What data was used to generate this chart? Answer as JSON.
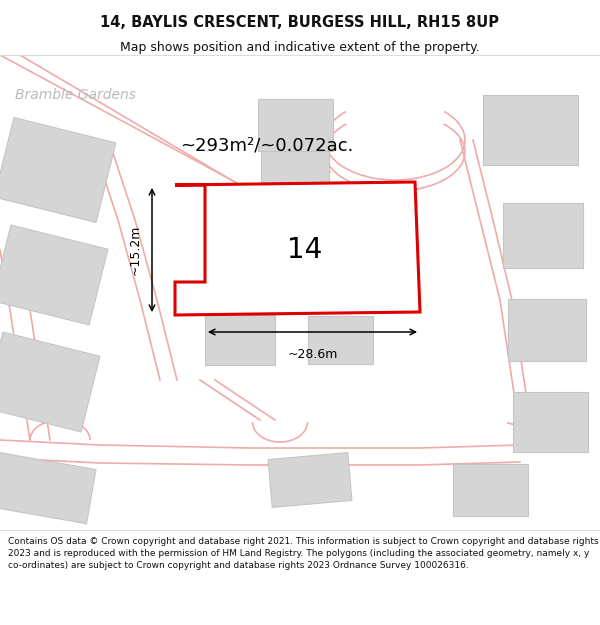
{
  "title_line1": "14, BAYLIS CRESCENT, BURGESS HILL, RH15 8UP",
  "title_line2": "Map shows position and indicative extent of the property.",
  "footer_text": "Contains OS data © Crown copyright and database right 2021. This information is subject to Crown copyright and database rights 2023 and is reproduced with the permission of HM Land Registry. The polygons (including the associated geometry, namely x, y co-ordinates) are subject to Crown copyright and database rights 2023 Ordnance Survey 100026316.",
  "street_label": "Bramble Gardens",
  "area_label": "~293m²/~0.072ac.",
  "plot_number": "14",
  "dim_width": "~28.6m",
  "dim_height": "~15.2m",
  "map_bg": "#f2f2f2",
  "plot_fill": "#ffffff",
  "plot_border": "#dd0000",
  "road_color": "#f0aaaa",
  "building_fill": "#d5d5d5",
  "building_edge": "#c5c5c5",
  "title_fontsize": 10.5,
  "subtitle_fontsize": 9,
  "footer_fontsize": 6.5,
  "street_fontsize": 10,
  "area_fontsize": 13,
  "number_fontsize": 20,
  "dim_fontsize": 9,
  "title_color": "#111111",
  "street_color": "#bbbbbb"
}
